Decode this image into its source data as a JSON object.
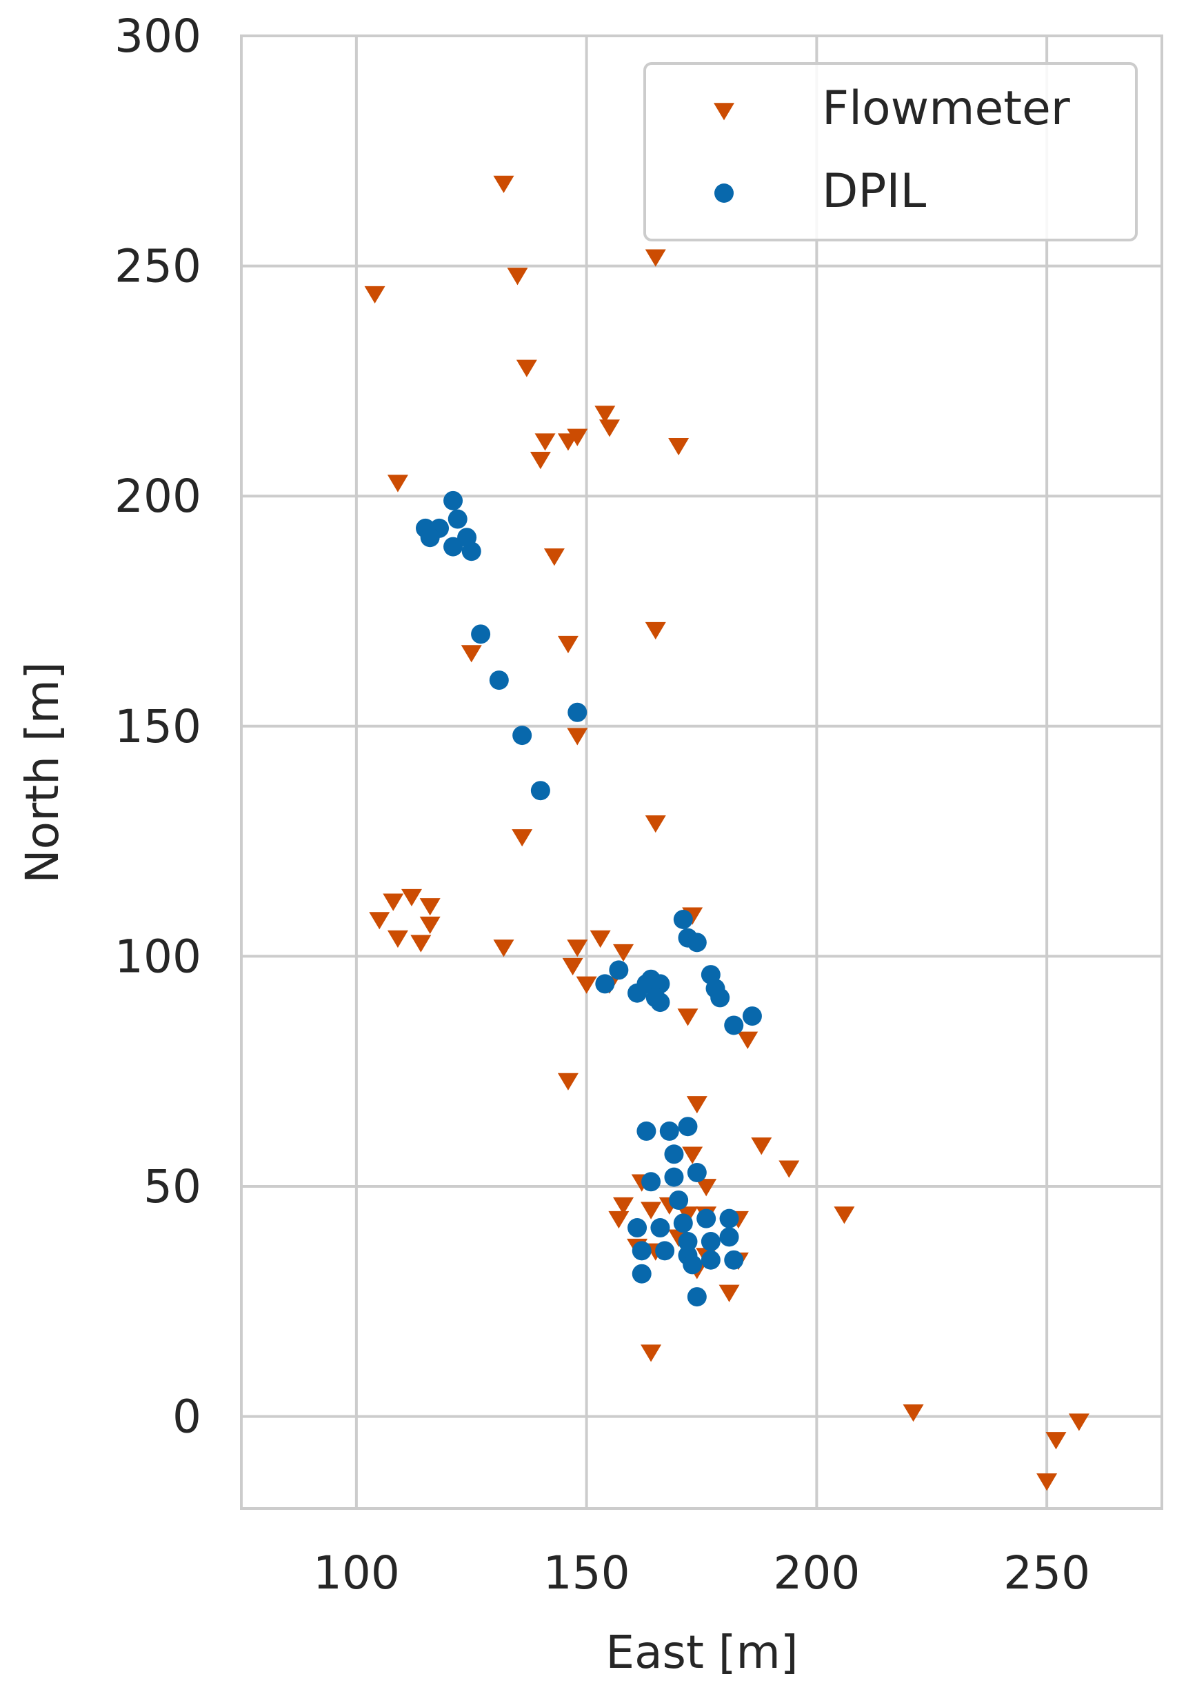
{
  "chart_data": {
    "type": "scatter",
    "title": "",
    "xlabel": "East [m]",
    "ylabel": "North [m]",
    "xlim": [
      75,
      275
    ],
    "ylim": [
      -20,
      300
    ],
    "xticks": [
      100,
      150,
      200,
      250
    ],
    "yticks": [
      0,
      50,
      100,
      150,
      200,
      250,
      300
    ],
    "grid": true,
    "legend_position": "top-right",
    "series": [
      {
        "name": "Flowmeter",
        "marker": "triangle-down",
        "color": "#cc4c02",
        "points": [
          [
            132,
            268
          ],
          [
            165,
            252
          ],
          [
            104,
            244
          ],
          [
            135,
            248
          ],
          [
            137,
            228
          ],
          [
            154,
            218
          ],
          [
            155,
            215
          ],
          [
            141,
            212
          ],
          [
            146,
            212
          ],
          [
            148,
            213
          ],
          [
            170,
            211
          ],
          [
            140,
            208
          ],
          [
            109,
            203
          ],
          [
            143,
            187
          ],
          [
            165,
            171
          ],
          [
            146,
            168
          ],
          [
            125,
            166
          ],
          [
            148,
            148
          ],
          [
            165,
            129
          ],
          [
            136,
            126
          ],
          [
            173,
            109
          ],
          [
            112,
            113
          ],
          [
            108,
            112
          ],
          [
            116,
            111
          ],
          [
            105,
            108
          ],
          [
            116,
            107
          ],
          [
            109,
            104
          ],
          [
            114,
            103
          ],
          [
            132,
            102
          ],
          [
            153,
            104
          ],
          [
            148,
            102
          ],
          [
            158,
            101
          ],
          [
            147,
            98
          ],
          [
            150,
            94
          ],
          [
            155,
            94
          ],
          [
            172,
            87
          ],
          [
            185,
            82
          ],
          [
            146,
            73
          ],
          [
            174,
            68
          ],
          [
            188,
            59
          ],
          [
            194,
            54
          ],
          [
            162,
            51
          ],
          [
            173,
            57
          ],
          [
            176,
            50
          ],
          [
            158,
            46
          ],
          [
            164,
            45
          ],
          [
            168,
            46
          ],
          [
            157,
            43
          ],
          [
            161,
            37
          ],
          [
            165,
            36
          ],
          [
            172,
            44
          ],
          [
            176,
            44
          ],
          [
            183,
            43
          ],
          [
            206,
            44
          ],
          [
            170,
            39
          ],
          [
            176,
            35
          ],
          [
            183,
            34
          ],
          [
            174,
            32
          ],
          [
            181,
            27
          ],
          [
            164,
            14
          ],
          [
            221,
            1
          ],
          [
            257,
            -1
          ],
          [
            252,
            -5
          ],
          [
            250,
            -14
          ]
        ]
      },
      {
        "name": "DPIL",
        "marker": "circle",
        "color": "#0868ac",
        "points": [
          [
            121,
            199
          ],
          [
            115,
            193
          ],
          [
            118,
            193
          ],
          [
            122,
            195
          ],
          [
            116,
            191
          ],
          [
            124,
            191
          ],
          [
            121,
            189
          ],
          [
            125,
            188
          ],
          [
            127,
            170
          ],
          [
            131,
            160
          ],
          [
            148,
            153
          ],
          [
            136,
            148
          ],
          [
            140,
            136
          ],
          [
            171,
            108
          ],
          [
            172,
            104
          ],
          [
            174,
            103
          ],
          [
            177,
            96
          ],
          [
            178,
            93
          ],
          [
            179,
            91
          ],
          [
            182,
            85
          ],
          [
            186,
            87
          ],
          [
            157,
            97
          ],
          [
            154,
            94
          ],
          [
            161,
            92
          ],
          [
            163,
            94
          ],
          [
            164,
            95
          ],
          [
            166,
            94
          ],
          [
            165,
            91
          ],
          [
            166,
            90
          ],
          [
            163,
            62
          ],
          [
            168,
            62
          ],
          [
            172,
            63
          ],
          [
            169,
            57
          ],
          [
            174,
            53
          ],
          [
            169,
            52
          ],
          [
            164,
            51
          ],
          [
            170,
            47
          ],
          [
            161,
            41
          ],
          [
            166,
            41
          ],
          [
            171,
            42
          ],
          [
            176,
            43
          ],
          [
            181,
            43
          ],
          [
            172,
            38
          ],
          [
            177,
            38
          ],
          [
            181,
            39
          ],
          [
            162,
            36
          ],
          [
            167,
            36
          ],
          [
            172,
            35
          ],
          [
            177,
            34
          ],
          [
            182,
            34
          ],
          [
            173,
            33
          ],
          [
            162,
            31
          ],
          [
            174,
            26
          ]
        ]
      }
    ]
  }
}
